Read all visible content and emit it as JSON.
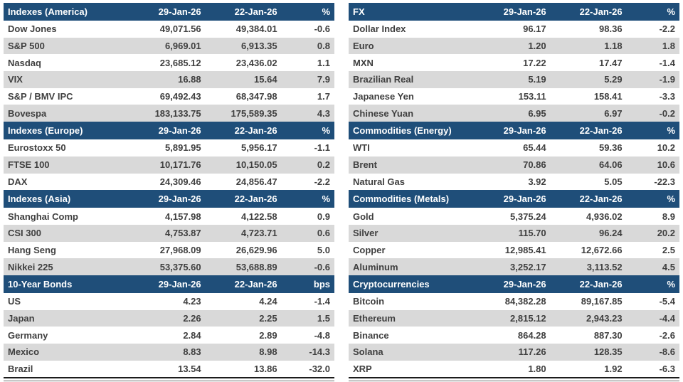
{
  "colors": {
    "header_bg": "#1F4E79",
    "header_text": "#FFFFFF",
    "row_alt_bg": "#D9D9D9",
    "body_text": "#3F3F3F",
    "bottom_border": "#1C1C1C"
  },
  "date_columns": [
    "29-Jan-26",
    "22-Jan-26"
  ],
  "left_tables": [
    {
      "title": "Indexes (America)",
      "date1": "29-Jan-26",
      "date2": "22-Jan-26",
      "unit": "%",
      "rows": [
        [
          "Dow Jones",
          "49,071.56",
          "49,384.01",
          "-0.6"
        ],
        [
          "S&P 500",
          "6,969.01",
          "6,913.35",
          "0.8"
        ],
        [
          "Nasdaq",
          "23,685.12",
          "23,436.02",
          "1.1"
        ],
        [
          "VIX",
          "16.88",
          "15.64",
          "7.9"
        ],
        [
          "S&P / BMV IPC",
          "69,492.43",
          "68,347.98",
          "1.7"
        ],
        [
          "Bovespa",
          "183,133.75",
          "175,589.35",
          "4.3"
        ]
      ]
    },
    {
      "title": "Indexes (Europe)",
      "date1": "29-Jan-26",
      "date2": "22-Jan-26",
      "unit": "%",
      "rows": [
        [
          "Eurostoxx 50",
          "5,891.95",
          "5,956.17",
          "-1.1"
        ],
        [
          "FTSE 100",
          "10,171.76",
          "10,150.05",
          "0.2"
        ],
        [
          "DAX",
          "24,309.46",
          "24,856.47",
          "-2.2"
        ]
      ]
    },
    {
      "title": "Indexes (Asia)",
      "date1": "29-Jan-26",
      "date2": "22-Jan-26",
      "unit": "%",
      "rows": [
        [
          "Shanghai Comp",
          "4,157.98",
          "4,122.58",
          "0.9"
        ],
        [
          "CSI 300",
          "4,753.87",
          "4,723.71",
          "0.6"
        ],
        [
          "Hang Seng",
          "27,968.09",
          "26,629.96",
          "5.0"
        ],
        [
          "Nikkei 225",
          "53,375.60",
          "53,688.89",
          "-0.6"
        ]
      ]
    },
    {
      "title": "10-Year Bonds",
      "date1": "29-Jan-26",
      "date2": "22-Jan-26",
      "unit": "bps",
      "rows": [
        [
          "US",
          "4.23",
          "4.24",
          "-1.4"
        ],
        [
          "Japan",
          "2.26",
          "2.25",
          "1.5"
        ],
        [
          "Germany",
          "2.84",
          "2.89",
          "-4.8"
        ],
        [
          "Mexico",
          "8.83",
          "8.98",
          "-14.3"
        ],
        [
          "Brazil",
          "13.54",
          "13.86",
          "-32.0"
        ]
      ]
    }
  ],
  "right_tables": [
    {
      "title": "FX",
      "date1": "29-Jan-26",
      "date2": "22-Jan-26",
      "unit": "%",
      "rows": [
        [
          "Dollar Index",
          "96.17",
          "98.36",
          "-2.2"
        ],
        [
          "Euro",
          "1.20",
          "1.18",
          "1.8"
        ],
        [
          "MXN",
          "17.22",
          "17.47",
          "-1.4"
        ],
        [
          "Brazilian Real",
          "5.19",
          "5.29",
          "-1.9"
        ],
        [
          "Japanese Yen",
          "153.11",
          "158.41",
          "-3.3"
        ],
        [
          "Chinese Yuan",
          "6.95",
          "6.97",
          "-0.2"
        ]
      ]
    },
    {
      "title": "Commodities (Energy)",
      "date1": "29-Jan-26",
      "date2": "22-Jan-26",
      "unit": "%",
      "rows": [
        [
          "WTI",
          "65.44",
          "59.36",
          "10.2"
        ],
        [
          "Brent",
          "70.86",
          "64.06",
          "10.6"
        ],
        [
          "Natural Gas",
          "3.92",
          "5.05",
          "-22.3"
        ]
      ]
    },
    {
      "title": "Commodities (Metals)",
      "date1": "29-Jan-26",
      "date2": "22-Jan-26",
      "unit": "%",
      "rows": [
        [
          "Gold",
          "5,375.24",
          "4,936.02",
          "8.9"
        ],
        [
          "Silver",
          "115.70",
          "96.24",
          "20.2"
        ],
        [
          "Copper",
          "12,985.41",
          "12,672.66",
          "2.5"
        ],
        [
          "Aluminum",
          "3,252.17",
          "3,113.52",
          "4.5"
        ]
      ]
    },
    {
      "title": "Cryptocurrencies",
      "date1": "29-Jan-26",
      "date2": "22-Jan-26",
      "unit": "%",
      "rows": [
        [
          "Bitcoin",
          "84,382.28",
          "89,167.85",
          "-5.4"
        ],
        [
          "Ethereum",
          "2,815.12",
          "2,943.23",
          "-4.4"
        ],
        [
          "Binance",
          "864.28",
          "887.30",
          "-2.6"
        ],
        [
          "Solana",
          "117.26",
          "128.35",
          "-8.6"
        ],
        [
          "XRP",
          "1.80",
          "1.92",
          "-6.3"
        ]
      ]
    }
  ]
}
